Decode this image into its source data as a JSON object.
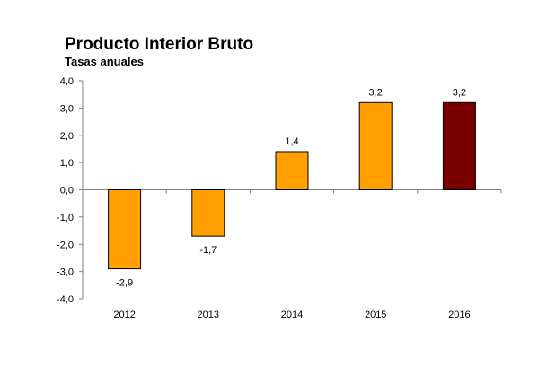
{
  "chart_data": {
    "type": "bar",
    "title": "Producto Interior Bruto",
    "subtitle": "Tasas anuales",
    "categories": [
      "2012",
      "2013",
      "2014",
      "2015",
      "2016"
    ],
    "values": [
      -2.9,
      -1.7,
      1.4,
      3.2,
      3.2
    ],
    "value_labels": [
      "-2,9",
      "-1,7",
      "1,4",
      "3,2",
      "3,2"
    ],
    "ylim": [
      -4.0,
      4.0
    ],
    "yticks": [
      4.0,
      3.0,
      2.0,
      1.0,
      0.0,
      -1.0,
      -2.0,
      -3.0,
      -4.0
    ],
    "ytick_labels": [
      "4,0",
      "3,0",
      "2,0",
      "1,0",
      "0,0",
      "-1,0",
      "-2,0",
      "-3,0",
      "-4,0"
    ],
    "bar_colors": [
      "#ffa000",
      "#ffa000",
      "#ffa000",
      "#ffa000",
      "#7a0000"
    ],
    "bar_edge_color": "#000000",
    "grid": false,
    "legend": "none"
  }
}
